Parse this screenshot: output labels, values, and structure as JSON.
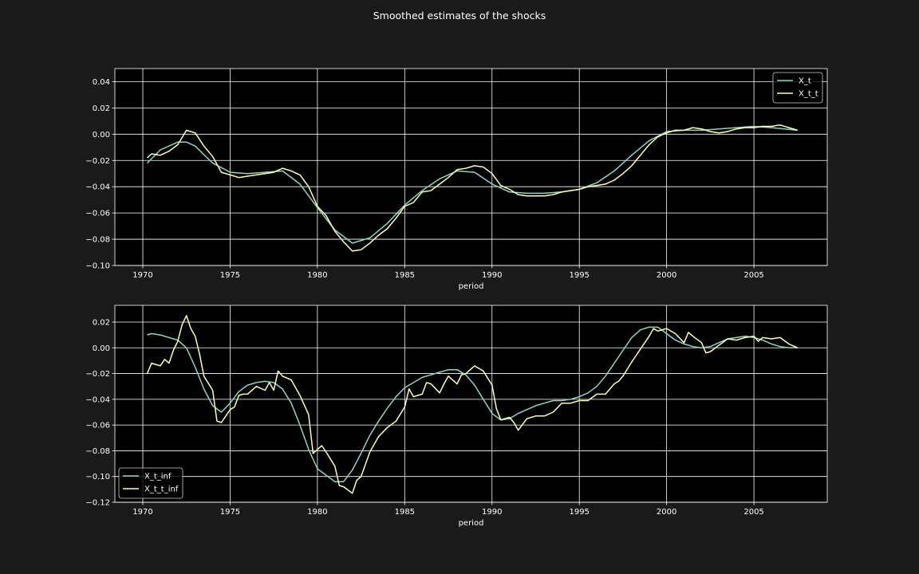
{
  "figure": {
    "title": "Smoothed estimates of the shocks",
    "background": "#1a1a1a",
    "axes_background": "#000000",
    "text_color": "#ffffff",
    "grid_color": "#ffffff"
  },
  "chart_data": [
    {
      "type": "line",
      "title": "",
      "xlabel": "period",
      "ylabel": "",
      "xlim": [
        1968.4,
        2009.2
      ],
      "ylim": [
        -0.1,
        0.05
      ],
      "xticks": [
        1970,
        1975,
        1980,
        1985,
        1990,
        1995,
        2000,
        2005
      ],
      "yticks": [
        -0.1,
        -0.08,
        -0.06,
        -0.04,
        -0.02,
        0.0,
        0.02,
        0.04
      ],
      "ytick_labels": [
        "−0.10",
        "−0.08",
        "−0.06",
        "−0.04",
        "−0.02",
        "0.00",
        "0.02",
        "0.04"
      ],
      "grid": true,
      "legend": "top-right",
      "series": [
        {
          "name": "X_t",
          "color": "#8dd3c7",
          "x": [
            1970.25,
            1971,
            1972,
            1972.5,
            1973,
            1974,
            1975,
            1976,
            1977,
            1978,
            1979,
            1980,
            1981,
            1982,
            1983,
            1984,
            1985,
            1986,
            1987,
            1988,
            1989,
            1990,
            1991,
            1992,
            1993,
            1994,
            1995,
            1996,
            1997,
            1998,
            1999,
            2000,
            2001,
            2002,
            2003,
            2004,
            2005,
            2006,
            2007.5
          ],
          "y": [
            -0.022,
            -0.012,
            -0.006,
            -0.006,
            -0.009,
            -0.022,
            -0.029,
            -0.03,
            -0.029,
            -0.028,
            -0.038,
            -0.056,
            -0.073,
            -0.083,
            -0.079,
            -0.068,
            -0.054,
            -0.043,
            -0.034,
            -0.028,
            -0.029,
            -0.038,
            -0.044,
            -0.045,
            -0.045,
            -0.044,
            -0.042,
            -0.037,
            -0.028,
            -0.016,
            -0.005,
            0.002,
            0.003,
            0.003,
            0.004,
            0.005,
            0.006,
            0.005,
            0.003
          ]
        },
        {
          "name": "X_t_t",
          "color": "#ffffb3",
          "x": [
            1970.25,
            1970.5,
            1971,
            1971.5,
            1972,
            1972.5,
            1973,
            1973.5,
            1974,
            1974.5,
            1975,
            1975.5,
            1976,
            1976.5,
            1977,
            1977.5,
            1978,
            1978.5,
            1979,
            1979.5,
            1980,
            1980.5,
            1981,
            1981.5,
            1982,
            1982.5,
            1983,
            1983.5,
            1984,
            1984.5,
            1985,
            1985.5,
            1986,
            1986.5,
            1987,
            1987.5,
            1988,
            1988.5,
            1989,
            1989.5,
            1990,
            1990.5,
            1991,
            1991.5,
            1992,
            1992.5,
            1993,
            1993.5,
            1994,
            1994.5,
            1995,
            1995.5,
            1996,
            1996.5,
            1997,
            1997.5,
            1998,
            1998.5,
            1999,
            1999.5,
            2000,
            2000.5,
            2001,
            2001.5,
            2002,
            2002.5,
            2003,
            2003.5,
            2004,
            2004.5,
            2005,
            2005.5,
            2006,
            2006.5,
            2007,
            2007.5
          ],
          "y": [
            -0.018,
            -0.015,
            -0.016,
            -0.013,
            -0.008,
            0.003,
            0.001,
            -0.009,
            -0.017,
            -0.029,
            -0.031,
            -0.033,
            -0.032,
            -0.031,
            -0.03,
            -0.029,
            -0.026,
            -0.028,
            -0.031,
            -0.04,
            -0.055,
            -0.062,
            -0.074,
            -0.082,
            -0.089,
            -0.088,
            -0.083,
            -0.077,
            -0.072,
            -0.064,
            -0.055,
            -0.052,
            -0.044,
            -0.043,
            -0.038,
            -0.033,
            -0.027,
            -0.026,
            -0.024,
            -0.025,
            -0.03,
            -0.039,
            -0.042,
            -0.046,
            -0.047,
            -0.047,
            -0.047,
            -0.046,
            -0.044,
            -0.043,
            -0.042,
            -0.04,
            -0.039,
            -0.038,
            -0.035,
            -0.03,
            -0.024,
            -0.016,
            -0.008,
            -0.002,
            0.001,
            0.003,
            0.003,
            0.005,
            0.004,
            0.002,
            0.001,
            0.002,
            0.004,
            0.005,
            0.005,
            0.006,
            0.006,
            0.007,
            0.005,
            0.003
          ]
        }
      ]
    },
    {
      "type": "line",
      "title": "",
      "xlabel": "period",
      "ylabel": "",
      "xlim": [
        1968.4,
        2009.2
      ],
      "ylim": [
        -0.12,
        0.033
      ],
      "xticks": [
        1970,
        1975,
        1980,
        1985,
        1990,
        1995,
        2000,
        2005
      ],
      "yticks": [
        -0.12,
        -0.1,
        -0.08,
        -0.06,
        -0.04,
        -0.02,
        0.0,
        0.02
      ],
      "ytick_labels": [
        "−0.12",
        "−0.10",
        "−0.08",
        "−0.06",
        "−0.04",
        "−0.02",
        "0.00",
        "0.02"
      ],
      "grid": true,
      "legend": "bottom-left",
      "series": [
        {
          "name": "X_t_inf",
          "color": "#8dd3c7",
          "x": [
            1970.25,
            1970.5,
            1971,
            1971.5,
            1972,
            1972.5,
            1973,
            1973.5,
            1974,
            1974.5,
            1975,
            1975.5,
            1976,
            1976.5,
            1977,
            1977.5,
            1978,
            1978.5,
            1979,
            1979.5,
            1980,
            1980.5,
            1981,
            1981.5,
            1982,
            1982.5,
            1983,
            1983.5,
            1984,
            1984.5,
            1985,
            1985.5,
            1986,
            1986.5,
            1987,
            1987.5,
            1988,
            1988.5,
            1989,
            1989.5,
            1990,
            1990.5,
            1991,
            1991.5,
            1992,
            1992.5,
            1993,
            1993.5,
            1994,
            1994.5,
            1995,
            1995.5,
            1996,
            1996.5,
            1997,
            1997.5,
            1998,
            1998.5,
            1999,
            1999.5,
            2000,
            2000.5,
            2001,
            2001.5,
            2002,
            2002.5,
            2003,
            2003.5,
            2004,
            2004.5,
            2005,
            2005.5,
            2006,
            2006.5,
            2007,
            2007.5
          ],
          "y": [
            0.01,
            0.011,
            0.01,
            0.008,
            0.006,
            0.0,
            -0.015,
            -0.032,
            -0.045,
            -0.05,
            -0.043,
            -0.034,
            -0.029,
            -0.027,
            -0.026,
            -0.027,
            -0.032,
            -0.043,
            -0.06,
            -0.079,
            -0.094,
            -0.099,
            -0.104,
            -0.104,
            -0.095,
            -0.082,
            -0.068,
            -0.057,
            -0.047,
            -0.038,
            -0.031,
            -0.027,
            -0.023,
            -0.021,
            -0.019,
            -0.017,
            -0.017,
            -0.021,
            -0.029,
            -0.04,
            -0.051,
            -0.056,
            -0.055,
            -0.051,
            -0.048,
            -0.045,
            -0.043,
            -0.041,
            -0.041,
            -0.04,
            -0.038,
            -0.035,
            -0.03,
            -0.022,
            -0.012,
            -0.002,
            0.008,
            0.014,
            0.016,
            0.016,
            0.011,
            0.006,
            0.003,
            0.001,
            0.0,
            0.001,
            0.004,
            0.007,
            0.008,
            0.009,
            0.008,
            0.006,
            0.003,
            0.001,
            0.0,
            0.0
          ]
        },
        {
          "name": "X_t_t_inf",
          "color": "#ffffb3",
          "x": [
            1970.25,
            1970.5,
            1971,
            1971.25,
            1971.5,
            1971.75,
            1972,
            1972.25,
            1972.5,
            1972.75,
            1973,
            1973.25,
            1973.5,
            1974,
            1974.25,
            1974.5,
            1975,
            1975.25,
            1975.5,
            1975.75,
            1976,
            1976.5,
            1977,
            1977.25,
            1977.5,
            1977.75,
            1978,
            1978.5,
            1979,
            1979.5,
            1979.75,
            1980,
            1980.25,
            1980.5,
            1981,
            1981.25,
            1981.5,
            1982,
            1982.25,
            1982.5,
            1983,
            1983.5,
            1984,
            1984.5,
            1985,
            1985.25,
            1985.5,
            1986,
            1986.25,
            1986.5,
            1987,
            1987.25,
            1987.5,
            1988,
            1988.25,
            1988.5,
            1989,
            1989.5,
            1990,
            1990.25,
            1990.5,
            1991,
            1991.25,
            1991.5,
            1992,
            1992.5,
            1993,
            1993.5,
            1994,
            1994.5,
            1995,
            1995.5,
            1996,
            1996.5,
            1997,
            1997.25,
            1997.5,
            1998,
            1998.25,
            1998.5,
            1999,
            1999.25,
            1999.5,
            2000,
            2000.5,
            2001,
            2001.25,
            2001.5,
            2002,
            2002.25,
            2002.5,
            2003,
            2003.5,
            2004,
            2004.5,
            2005,
            2005.25,
            2005.5,
            2006,
            2006.5,
            2007,
            2007.5
          ],
          "y": [
            -0.02,
            -0.012,
            -0.014,
            -0.009,
            -0.012,
            -0.002,
            0.005,
            0.018,
            0.025,
            0.015,
            0.009,
            -0.005,
            -0.022,
            -0.033,
            -0.057,
            -0.058,
            -0.048,
            -0.046,
            -0.037,
            -0.036,
            -0.036,
            -0.03,
            -0.033,
            -0.027,
            -0.033,
            -0.018,
            -0.022,
            -0.025,
            -0.037,
            -0.052,
            -0.082,
            -0.079,
            -0.076,
            -0.081,
            -0.092,
            -0.107,
            -0.108,
            -0.113,
            -0.103,
            -0.1,
            -0.081,
            -0.069,
            -0.062,
            -0.057,
            -0.046,
            -0.032,
            -0.038,
            -0.036,
            -0.027,
            -0.028,
            -0.035,
            -0.028,
            -0.022,
            -0.028,
            -0.021,
            -0.02,
            -0.014,
            -0.018,
            -0.029,
            -0.047,
            -0.056,
            -0.054,
            -0.058,
            -0.064,
            -0.055,
            -0.053,
            -0.053,
            -0.05,
            -0.043,
            -0.043,
            -0.041,
            -0.041,
            -0.036,
            -0.036,
            -0.028,
            -0.026,
            -0.022,
            -0.011,
            -0.006,
            -0.001,
            0.009,
            0.015,
            0.013,
            0.015,
            0.011,
            0.004,
            0.012,
            0.009,
            0.004,
            -0.004,
            -0.003,
            0.002,
            0.007,
            0.006,
            0.008,
            0.009,
            0.005,
            0.008,
            0.007,
            0.008,
            0.003,
            0.0
          ]
        }
      ]
    }
  ]
}
